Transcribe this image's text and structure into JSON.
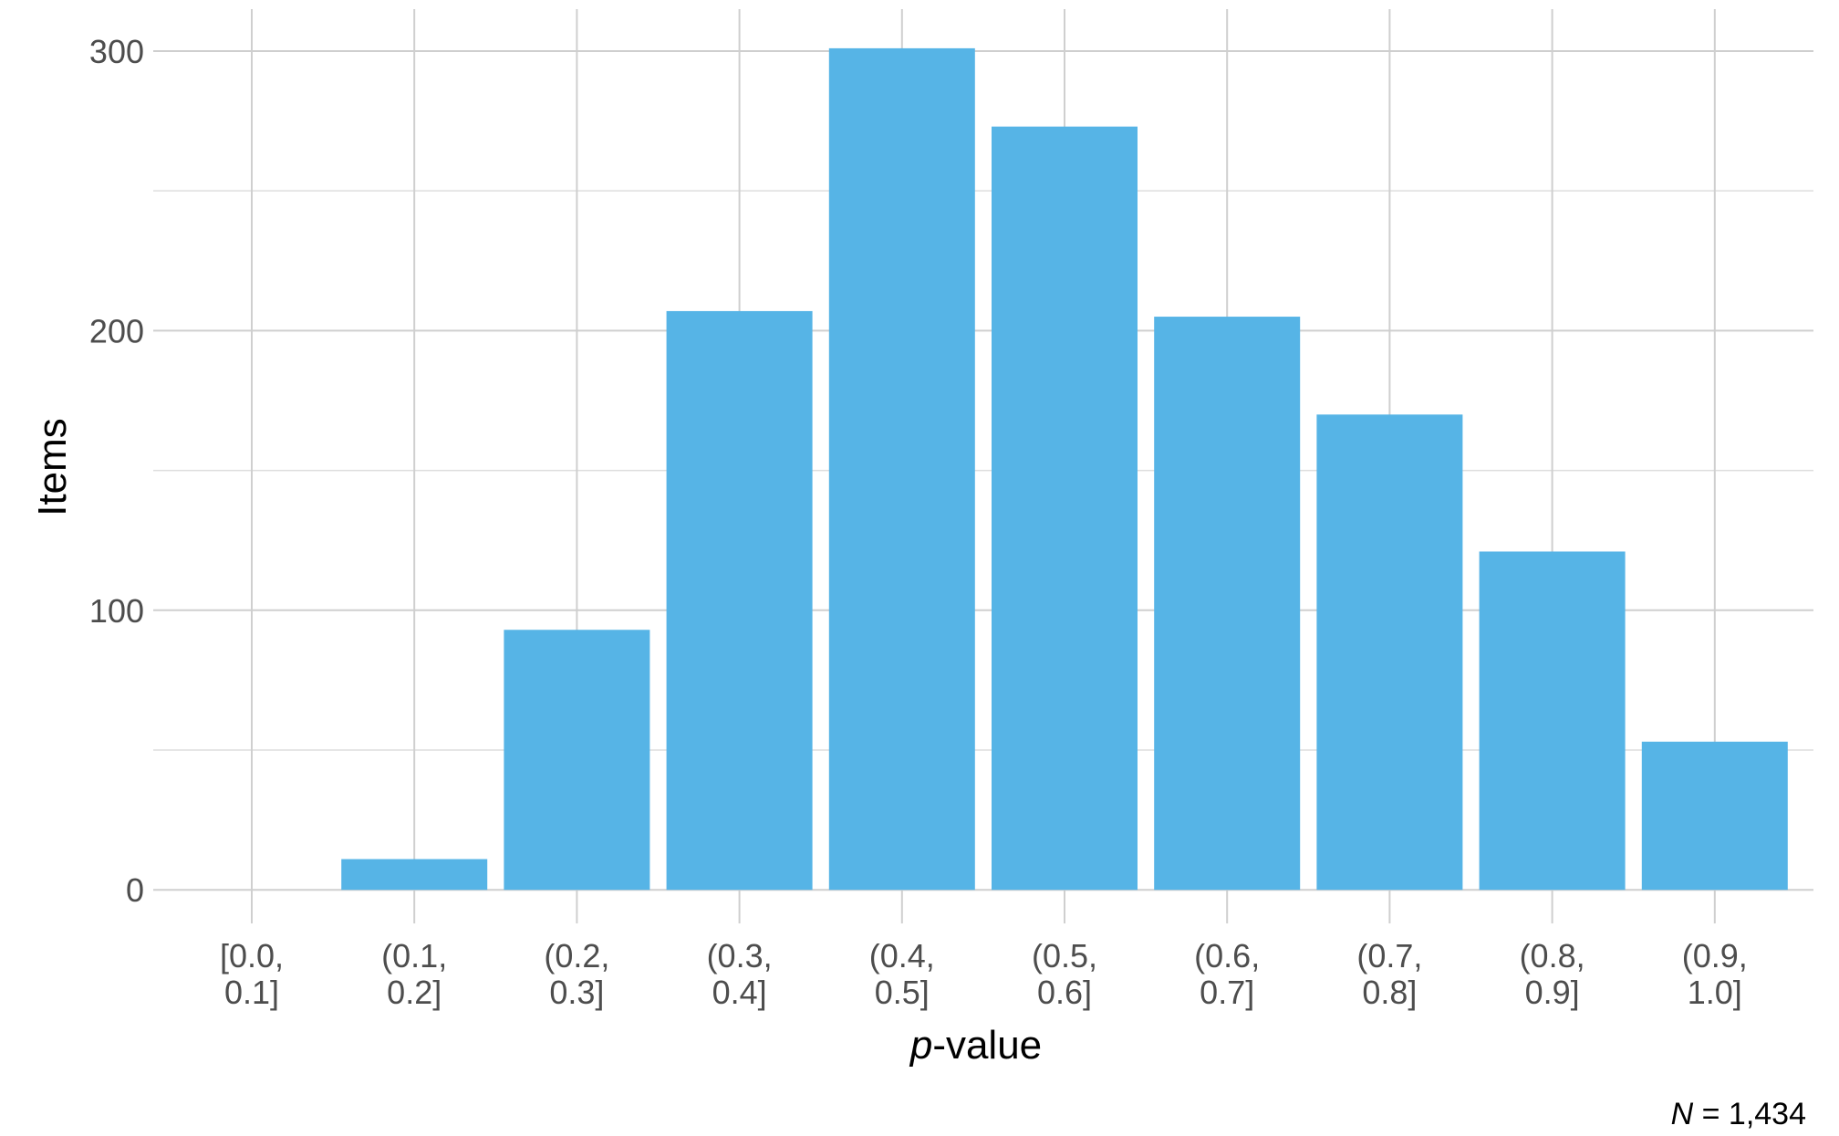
{
  "chart_data": {
    "type": "bar",
    "categories": [
      [
        "[0.0,",
        "0.1]"
      ],
      [
        "(0.1,",
        "0.2]"
      ],
      [
        "(0.2,",
        "0.3]"
      ],
      [
        "(0.3,",
        "0.4]"
      ],
      [
        "(0.4,",
        "0.5]"
      ],
      [
        "(0.5,",
        "0.6]"
      ],
      [
        "(0.6,",
        "0.7]"
      ],
      [
        "(0.7,",
        "0.8]"
      ],
      [
        "(0.8,",
        "0.9]"
      ],
      [
        "(0.9,",
        "1.0]"
      ]
    ],
    "values": [
      0,
      11,
      93,
      207,
      301,
      273,
      205,
      170,
      121,
      53
    ],
    "xlabel_italic": "p",
    "xlabel_rest": "-value",
    "ylabel": "Items",
    "ylim": [
      -12,
      315
    ],
    "yticks": [
      0,
      100,
      200,
      300
    ],
    "yticks_labels": [
      "0",
      "100",
      "200",
      "300"
    ],
    "grid": true,
    "bar_color": "#56b4e6",
    "caption_italic": "N",
    "caption_rest": " = 1,434"
  }
}
